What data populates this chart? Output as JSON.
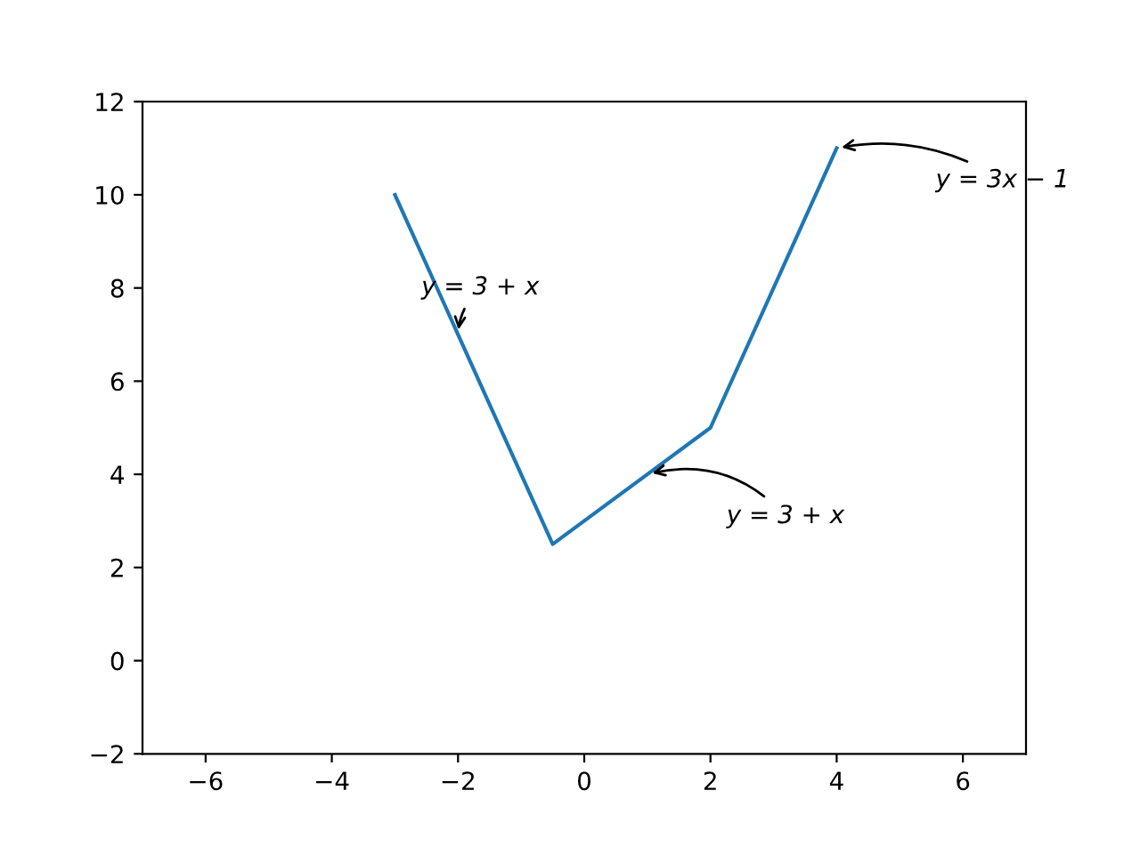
{
  "chart_data": {
    "type": "line",
    "x": [
      -3,
      -0.5,
      2,
      4
    ],
    "series": [
      {
        "color": "#1f77b4",
        "values": [
          10,
          2.5,
          5,
          11
        ]
      }
    ],
    "xlim": [
      -7,
      7
    ],
    "xticks": [
      {
        "value": -6,
        "label": "−6"
      },
      {
        "value": -4,
        "label": "−4"
      },
      {
        "value": -2,
        "label": "−2"
      },
      0,
      2,
      4,
      6
    ],
    "ylim": [
      -2,
      12
    ],
    "yticks": [
      {
        "value": -2,
        "label": "−2"
      },
      0,
      2,
      4,
      6,
      8,
      10,
      12
    ],
    "annotations": [
      {
        "text": "y = 3 + x",
        "x": -2,
        "y": 7
      },
      {
        "text": "y = 3 + x",
        "x": 1,
        "y": 4
      },
      {
        "text": "y = 3x − 1",
        "x": 4,
        "y": 11
      }
    ],
    "grid": false,
    "legend": false,
    "marker": "none",
    "line_style": "solid"
  }
}
